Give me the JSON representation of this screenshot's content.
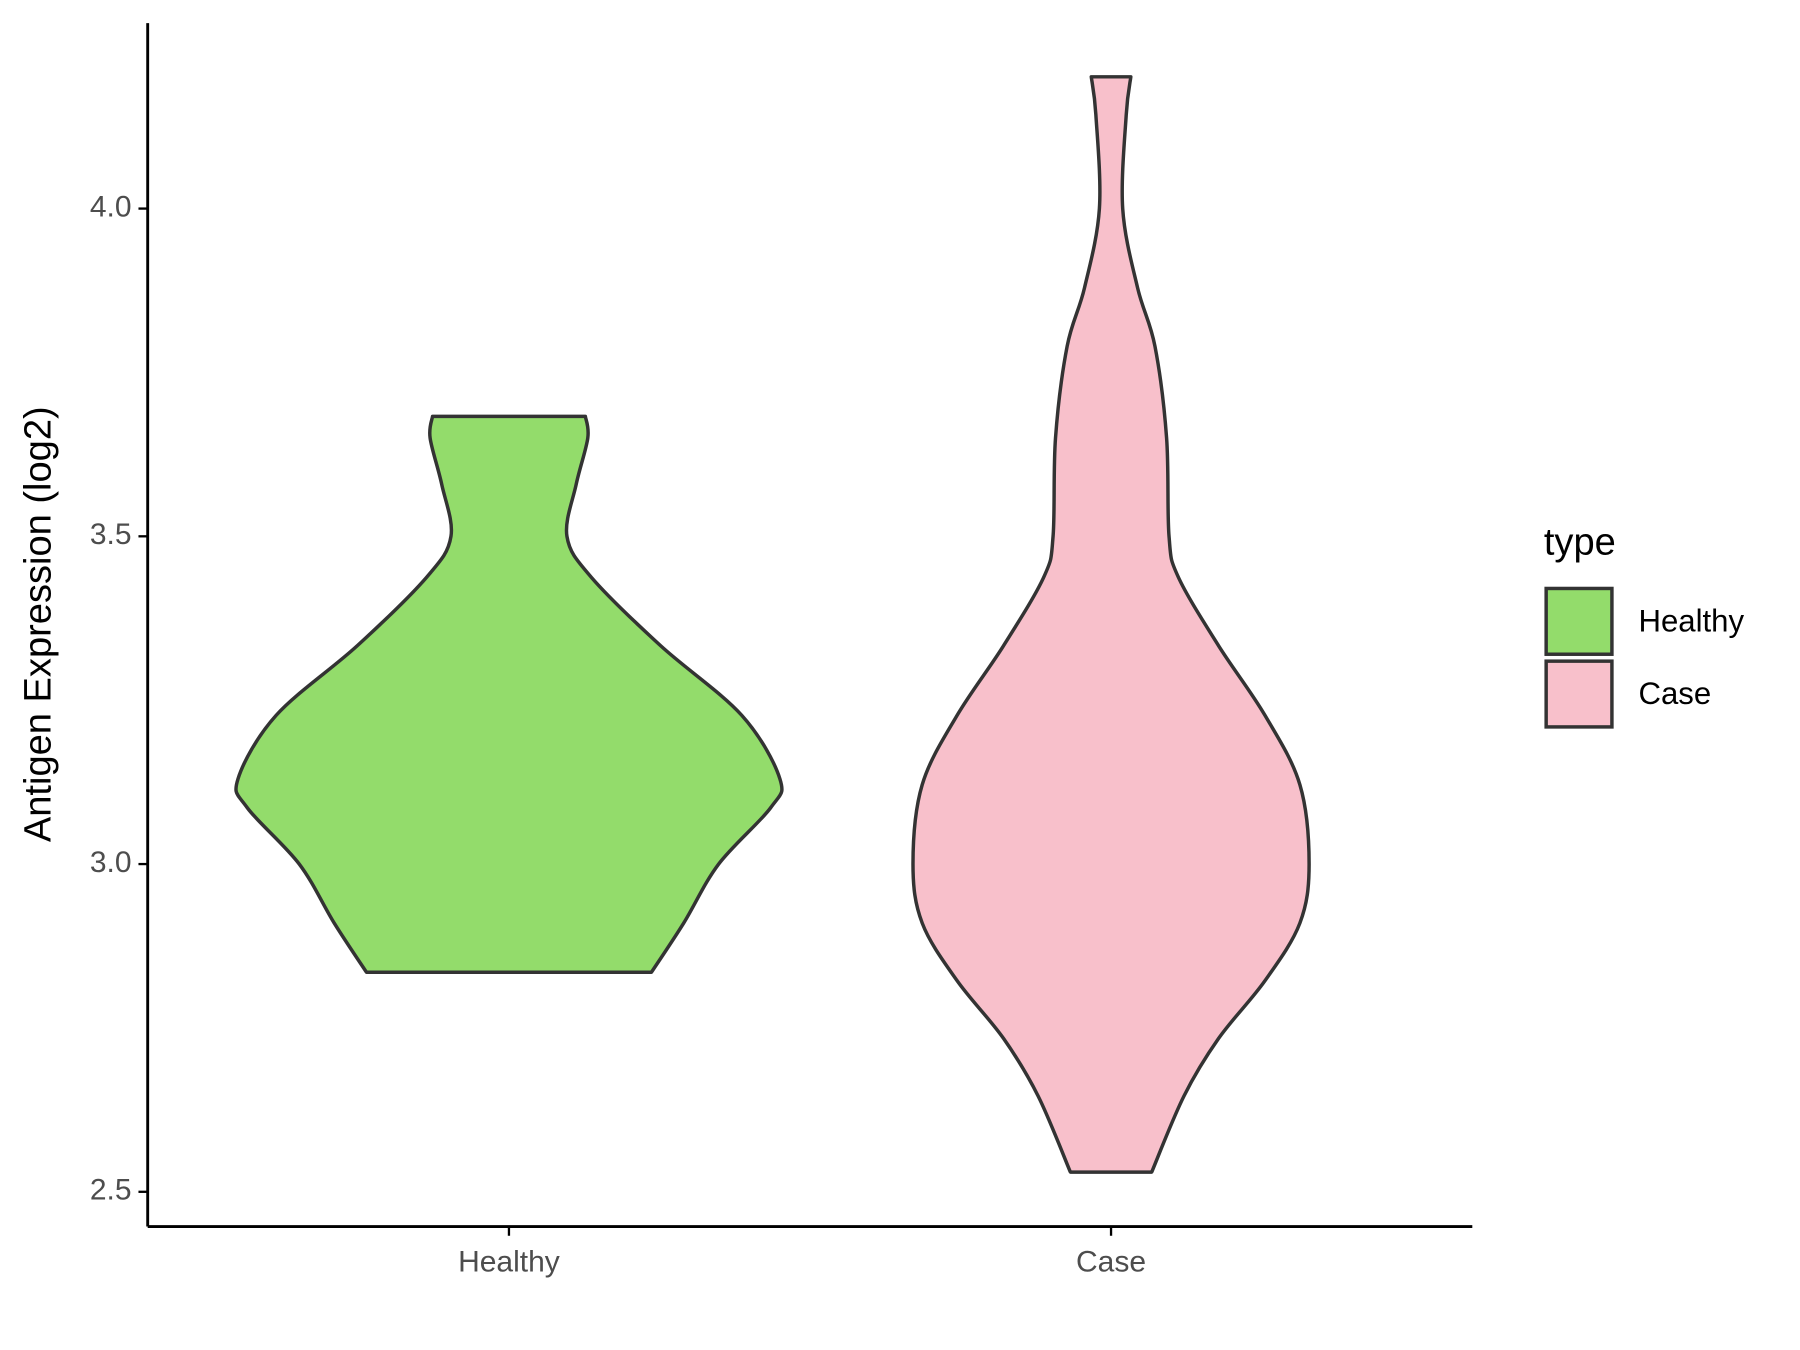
{
  "chart_data": {
    "type": "violin",
    "y_label": "Antigen Expression (log2)",
    "legend_title": "type",
    "categories": [
      "Healthy",
      "Case"
    ],
    "series": [
      {
        "name": "Healthy",
        "color": "#93dc6b",
        "y": [
          3.683,
          3.65,
          3.579,
          3.5,
          3.438,
          3.333,
          3.227,
          3.13,
          3.086,
          3.0,
          2.91,
          2.835
        ],
        "density": [
          0.282,
          0.291,
          0.248,
          0.214,
          0.303,
          0.56,
          0.859,
          1.0,
          0.966,
          0.774,
          0.645,
          0.526
        ]
      },
      {
        "name": "Case",
        "color": "#f8c0cb",
        "y": [
          4.201,
          4.143,
          4.0,
          3.879,
          3.79,
          3.65,
          3.5,
          3.438,
          3.333,
          3.227,
          3.121,
          3.0,
          2.91,
          2.822,
          2.734,
          2.646,
          2.53
        ],
        "density": [
          0.073,
          0.056,
          0.043,
          0.098,
          0.162,
          0.205,
          0.214,
          0.248,
          0.397,
          0.568,
          0.697,
          0.731,
          0.697,
          0.568,
          0.397,
          0.269,
          0.15
        ]
      }
    ],
    "ylim": [
      2.447,
      4.283
    ],
    "yticks": [
      2.5,
      {
        "value": 3,
        "label": "3.0"
      },
      3.5,
      {
        "value": 4,
        "label": "4.0"
      }
    ]
  }
}
